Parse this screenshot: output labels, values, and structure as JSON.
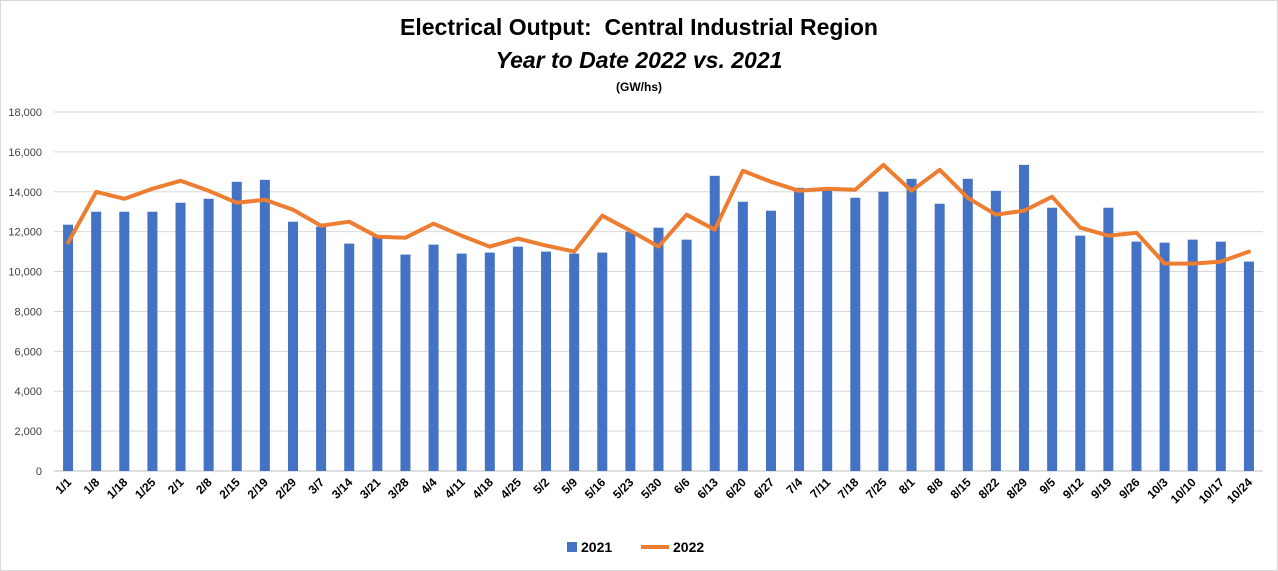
{
  "chart_data": {
    "type": "bar",
    "title": "Electrical Output:  Central Industrial Region",
    "subtitle": "Year to Date 2022 vs. 2021",
    "unit_label": "(GW/hs)",
    "categories": [
      "1/1",
      "1/8",
      "1/18",
      "1/25",
      "2/1",
      "2/8",
      "2/15",
      "2/19",
      "2/29",
      "3/7",
      "3/14",
      "3/21",
      "3/28",
      "4/4",
      "4/11",
      "4/18",
      "4/25",
      "5/2",
      "5/9",
      "5/16",
      "5/23",
      "5/30",
      "6/6",
      "6/13",
      "6/20",
      "6/27",
      "7/4",
      "7/11",
      "7/18",
      "7/25",
      "8/1",
      "8/8",
      "8/15",
      "8/22",
      "8/29",
      "9/5",
      "9/12",
      "9/19",
      "9/26",
      "10/3",
      "10/10",
      "10/17",
      "10/24"
    ],
    "series": [
      {
        "name": "2021",
        "type": "bar",
        "color": "#4472c4",
        "values": [
          12350,
          13000,
          13000,
          13000,
          13450,
          13650,
          14500,
          14600,
          12500,
          12250,
          11400,
          11800,
          10850,
          11350,
          10900,
          10950,
          11250,
          11000,
          10900,
          10950,
          12000,
          12200,
          11600,
          14800,
          13500,
          13050,
          14200,
          14100,
          13700,
          14000,
          14650,
          13400,
          14650,
          14050,
          15350,
          13200,
          11800,
          13200,
          11500,
          11450,
          11600,
          11500,
          10500
        ]
      },
      {
        "name": "2022",
        "type": "line",
        "color": "#ed7d31",
        "values": [
          11450,
          14000,
          13650,
          14150,
          14550,
          14050,
          13450,
          13600,
          13100,
          12300,
          12500,
          11750,
          11700,
          12400,
          11800,
          11250,
          11650,
          11300,
          11000,
          12800,
          12050,
          11250,
          12850,
          12100,
          15050,
          14500,
          14050,
          14150,
          14100,
          15350,
          14050,
          15100,
          13700,
          12850,
          13050,
          13750,
          12200,
          11800,
          11950,
          10400,
          10400,
          10500,
          11000
        ]
      }
    ],
    "ylim": [
      0,
      18000
    ],
    "yticks": [
      0,
      2000,
      4000,
      6000,
      8000,
      10000,
      12000,
      14000,
      16000,
      18000
    ],
    "ytick_labels": [
      "0",
      "2,000",
      "4,000",
      "6,000",
      "8,000",
      "10,000",
      "12,000",
      "14,000",
      "16,000",
      "18,000"
    ],
    "grid": true,
    "legend": "bottom-center",
    "xlabel": "",
    "ylabel": ""
  }
}
